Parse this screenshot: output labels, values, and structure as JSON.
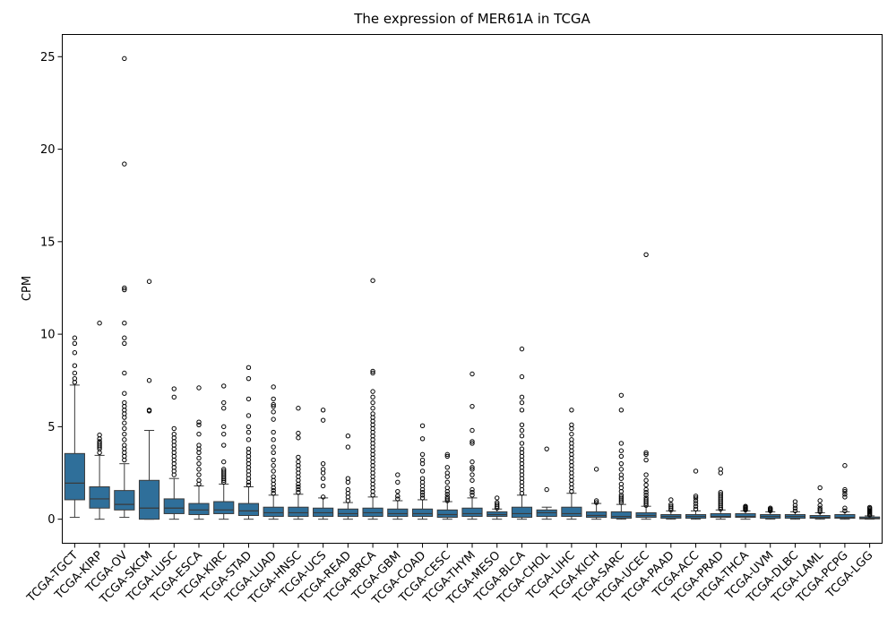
{
  "chart_data": {
    "type": "box",
    "title": "The expression of MER61A in TCGA",
    "xlabel": "",
    "ylabel": "CPM",
    "ylim": [
      -1.3,
      26.2
    ],
    "yticks": [
      0,
      5,
      10,
      15,
      20,
      25
    ],
    "box_color": "#2f6f9a",
    "line_color": "#3a3a3a",
    "grid": false,
    "categories": [
      "TCGA-TGCT",
      "TCGA-KIRP",
      "TCGA-OV",
      "TCGA-SKCM",
      "TCGA-LUSC",
      "TCGA-ESCA",
      "TCGA-KIRC",
      "TCGA-STAD",
      "TCGA-LUAD",
      "TCGA-HNSC",
      "TCGA-UCS",
      "TCGA-READ",
      "TCGA-BRCA",
      "TCGA-GBM",
      "TCGA-COAD",
      "TCGA-CESC",
      "TCGA-THYM",
      "TCGA-MESO",
      "TCGA-BLCA",
      "TCGA-CHOL",
      "TCGA-LIHC",
      "TCGA-KICH",
      "TCGA-SARC",
      "TCGA-UCEC",
      "TCGA-PAAD",
      "TCGA-ACC",
      "TCGA-PRAD",
      "TCGA-THCA",
      "TCGA-UVM",
      "TCGA-DLBC",
      "TCGA-LAML",
      "TCGA-PCPG",
      "TCGA-LGG"
    ],
    "boxes": [
      {
        "min": 0.1,
        "q1": 1.05,
        "median": 1.95,
        "q3": 3.55,
        "max": 7.25,
        "outliers": [
          7.4,
          7.6,
          7.9,
          8.3,
          9.0,
          9.5,
          9.8
        ]
      },
      {
        "min": 0.0,
        "q1": 0.6,
        "median": 1.1,
        "q3": 1.75,
        "max": 3.45,
        "outliers": [
          3.6,
          3.8,
          3.9,
          4.0,
          4.1,
          4.2,
          4.35,
          4.55,
          10.6
        ]
      },
      {
        "min": 0.1,
        "q1": 0.5,
        "median": 0.8,
        "q3": 1.55,
        "max": 3.0,
        "outliers": [
          3.2,
          3.4,
          3.6,
          3.8,
          4.0,
          4.3,
          4.6,
          4.9,
          5.2,
          5.5,
          5.7,
          5.9,
          6.1,
          6.3,
          6.8,
          7.9,
          9.5,
          9.8,
          10.6,
          12.4,
          12.5,
          19.2,
          24.9
        ]
      },
      {
        "min": 0.0,
        "q1": 0.0,
        "median": 0.6,
        "q3": 2.1,
        "max": 4.8,
        "outliers": [
          5.85,
          5.9,
          7.5,
          12.85
        ]
      },
      {
        "min": 0.0,
        "q1": 0.3,
        "median": 0.6,
        "q3": 1.1,
        "max": 2.2,
        "outliers": [
          2.4,
          2.6,
          2.8,
          3.0,
          3.2,
          3.4,
          3.6,
          3.8,
          4.0,
          4.2,
          4.4,
          4.6,
          4.9,
          6.6,
          7.05
        ]
      },
      {
        "min": 0.0,
        "q1": 0.25,
        "median": 0.5,
        "q3": 0.85,
        "max": 1.8,
        "outliers": [
          1.9,
          2.1,
          2.4,
          2.7,
          3.0,
          3.3,
          3.6,
          3.8,
          4.0,
          4.6,
          5.1,
          5.25,
          7.1
        ]
      },
      {
        "min": 0.0,
        "q1": 0.3,
        "median": 0.5,
        "q3": 0.95,
        "max": 1.9,
        "outliers": [
          2.0,
          2.1,
          2.2,
          2.3,
          2.4,
          2.5,
          2.6,
          2.7,
          3.1,
          4.0,
          4.6,
          5.0,
          6.0,
          6.3,
          7.2
        ]
      },
      {
        "min": 0.0,
        "q1": 0.2,
        "median": 0.45,
        "q3": 0.85,
        "max": 1.75,
        "outliers": [
          1.85,
          2.0,
          2.2,
          2.4,
          2.6,
          2.8,
          3.0,
          3.2,
          3.4,
          3.6,
          3.8,
          4.3,
          4.7,
          5.0,
          5.6,
          6.5,
          7.6,
          8.2
        ]
      },
      {
        "min": 0.0,
        "q1": 0.15,
        "median": 0.35,
        "q3": 0.65,
        "max": 1.3,
        "outliers": [
          1.4,
          1.55,
          1.7,
          1.9,
          2.1,
          2.3,
          2.6,
          2.9,
          3.2,
          3.6,
          3.9,
          4.3,
          4.7,
          5.4,
          5.8,
          6.1,
          6.2,
          6.5,
          7.15
        ]
      },
      {
        "min": 0.0,
        "q1": 0.15,
        "median": 0.35,
        "q3": 0.65,
        "max": 1.35,
        "outliers": [
          1.45,
          1.6,
          1.75,
          1.9,
          2.1,
          2.3,
          2.5,
          2.7,
          2.9,
          3.1,
          3.35,
          4.4,
          4.65,
          6.0
        ]
      },
      {
        "min": 0.0,
        "q1": 0.15,
        "median": 0.35,
        "q3": 0.6,
        "max": 1.15,
        "outliers": [
          1.2,
          1.8,
          2.2,
          2.5,
          2.7,
          3.0,
          5.35,
          5.9
        ]
      },
      {
        "min": 0.0,
        "q1": 0.15,
        "median": 0.3,
        "q3": 0.55,
        "max": 0.9,
        "outliers": [
          1.0,
          1.2,
          1.4,
          1.6,
          2.0,
          2.2,
          3.9,
          4.5
        ]
      },
      {
        "min": 0.0,
        "q1": 0.15,
        "median": 0.35,
        "q3": 0.6,
        "max": 1.2,
        "outliers": [
          1.3,
          1.5,
          1.7,
          1.9,
          2.1,
          2.3,
          2.5,
          2.7,
          2.9,
          3.1,
          3.3,
          3.5,
          3.7,
          3.9,
          4.1,
          4.3,
          4.5,
          4.7,
          4.9,
          5.1,
          5.3,
          5.5,
          5.7,
          6.0,
          6.3,
          6.6,
          6.9,
          7.9,
          8.0,
          12.9
        ]
      },
      {
        "min": 0.0,
        "q1": 0.15,
        "median": 0.3,
        "q3": 0.55,
        "max": 1.0,
        "outliers": [
          1.1,
          1.25,
          1.5,
          2.0,
          2.4
        ]
      },
      {
        "min": 0.0,
        "q1": 0.15,
        "median": 0.3,
        "q3": 0.55,
        "max": 1.05,
        "outliers": [
          1.15,
          1.3,
          1.45,
          1.6,
          1.8,
          2.0,
          2.2,
          2.6,
          3.0,
          3.2,
          3.5,
          4.35,
          5.05
        ]
      },
      {
        "min": 0.0,
        "q1": 0.1,
        "median": 0.25,
        "q3": 0.5,
        "max": 0.95,
        "outliers": [
          1.0,
          1.1,
          1.2,
          1.35,
          1.5,
          1.7,
          2.0,
          2.3,
          2.5,
          2.8,
          3.4,
          3.5
        ]
      },
      {
        "min": 0.0,
        "q1": 0.15,
        "median": 0.3,
        "q3": 0.6,
        "max": 1.15,
        "outliers": [
          1.3,
          1.45,
          1.6,
          2.1,
          2.4,
          2.7,
          2.8,
          3.1,
          4.1,
          4.2,
          4.8,
          6.1,
          7.85
        ]
      },
      {
        "min": 0.0,
        "q1": 0.15,
        "median": 0.25,
        "q3": 0.4,
        "max": 0.55,
        "outliers": [
          0.6,
          0.7,
          0.8,
          0.9,
          1.15
        ]
      },
      {
        "min": 0.0,
        "q1": 0.1,
        "median": 0.3,
        "q3": 0.65,
        "max": 1.3,
        "outliers": [
          1.4,
          1.6,
          1.8,
          2.0,
          2.2,
          2.4,
          2.6,
          2.8,
          3.0,
          3.2,
          3.4,
          3.6,
          3.8,
          4.1,
          4.5,
          4.8,
          5.1,
          5.9,
          6.3,
          6.6,
          7.7,
          9.2
        ]
      },
      {
        "min": 0.0,
        "q1": 0.15,
        "median": 0.35,
        "q3": 0.5,
        "max": 0.65,
        "outliers": [
          1.6,
          3.8
        ]
      },
      {
        "min": 0.0,
        "q1": 0.15,
        "median": 0.3,
        "q3": 0.65,
        "max": 1.4,
        "outliers": [
          1.5,
          1.7,
          1.9,
          2.1,
          2.3,
          2.5,
          2.7,
          2.9,
          3.1,
          3.3,
          3.5,
          3.7,
          3.9,
          4.1,
          4.3,
          4.6,
          4.9,
          5.1,
          5.9
        ]
      },
      {
        "min": 0.0,
        "q1": 0.1,
        "median": 0.2,
        "q3": 0.4,
        "max": 0.85,
        "outliers": [
          0.9,
          1.0,
          2.7
        ]
      },
      {
        "min": 0.0,
        "q1": 0.05,
        "median": 0.15,
        "q3": 0.4,
        "max": 0.8,
        "outliers": [
          0.9,
          1.0,
          1.1,
          1.2,
          1.3,
          1.5,
          1.7,
          1.9,
          2.2,
          2.4,
          2.7,
          3.0,
          3.4,
          3.7,
          4.1,
          5.9,
          6.7
        ]
      },
      {
        "min": 0.0,
        "q1": 0.1,
        "median": 0.2,
        "q3": 0.35,
        "max": 0.7,
        "outliers": [
          0.75,
          0.85,
          0.95,
          1.05,
          1.15,
          1.3,
          1.45,
          1.6,
          1.85,
          2.1,
          2.4,
          3.2,
          3.5,
          3.6,
          14.3
        ]
      },
      {
        "min": 0.0,
        "q1": 0.05,
        "median": 0.15,
        "q3": 0.25,
        "max": 0.45,
        "outliers": [
          0.5,
          0.6,
          0.7,
          0.8,
          1.05
        ]
      },
      {
        "min": 0.0,
        "q1": 0.05,
        "median": 0.15,
        "q3": 0.25,
        "max": 0.45,
        "outliers": [
          0.55,
          0.7,
          0.85,
          1.0,
          1.15,
          1.25,
          2.6
        ]
      },
      {
        "min": 0.0,
        "q1": 0.1,
        "median": 0.15,
        "q3": 0.3,
        "max": 0.5,
        "outliers": [
          0.55,
          0.65,
          0.75,
          0.85,
          0.95,
          1.05,
          1.15,
          1.25,
          1.35,
          1.45,
          2.5,
          2.7
        ]
      },
      {
        "min": 0.0,
        "q1": 0.1,
        "median": 0.15,
        "q3": 0.3,
        "max": 0.45,
        "outliers": [
          0.5,
          0.55,
          0.6,
          0.65,
          0.7
        ]
      },
      {
        "min": 0.0,
        "q1": 0.05,
        "median": 0.15,
        "q3": 0.25,
        "max": 0.4,
        "outliers": [
          0.45,
          0.5,
          0.55,
          0.6
        ]
      },
      {
        "min": 0.0,
        "q1": 0.05,
        "median": 0.15,
        "q3": 0.25,
        "max": 0.4,
        "outliers": [
          0.45,
          0.6,
          0.75,
          0.95
        ]
      },
      {
        "min": 0.0,
        "q1": 0.05,
        "median": 0.1,
        "q3": 0.2,
        "max": 0.35,
        "outliers": [
          0.4,
          0.5,
          0.6,
          0.75,
          1.0,
          1.7
        ]
      },
      {
        "min": 0.0,
        "q1": 0.05,
        "median": 0.1,
        "q3": 0.25,
        "max": 0.4,
        "outliers": [
          0.45,
          0.6,
          1.2,
          1.35,
          1.5,
          1.6,
          2.9
        ]
      },
      {
        "min": 0.0,
        "q1": 0.02,
        "median": 0.05,
        "q3": 0.12,
        "max": 0.18,
        "outliers": [
          0.22,
          0.28,
          0.34,
          0.4,
          0.46,
          0.52,
          0.58,
          0.64
        ]
      }
    ]
  }
}
